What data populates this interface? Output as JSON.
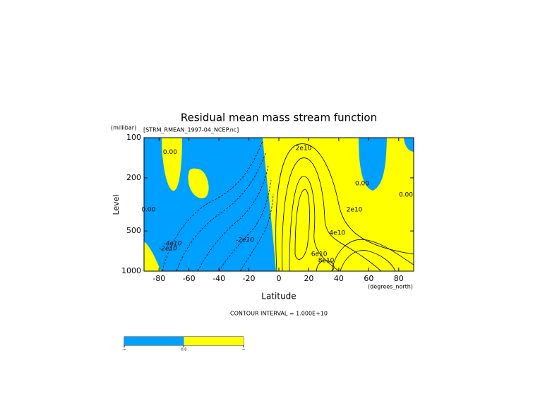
{
  "chart_data": {
    "type": "contour",
    "title": "Residual mean mass stream function",
    "subtitle": "[STRM_RMEAN_1997-04_NCEP.nc]",
    "y_unit": "(millibar)",
    "y_label": "Level",
    "x_label": "Latitude",
    "x_unit": "(degrees_north)",
    "note": "CONTOUR INTERVAL = 1.000E+10",
    "xlim": [
      -90,
      90
    ],
    "xticks": [
      -80,
      -60,
      -40,
      -20,
      0,
      20,
      40,
      60,
      80
    ],
    "ylim": [
      1000,
      100
    ],
    "yticks": [
      100,
      200,
      500,
      1000
    ],
    "y_log": true,
    "colors": [
      "#00a0ff",
      "#ffff00"
    ],
    "colorbar_labels": [
      "-∞",
      "0.0",
      "∞"
    ],
    "contour_labels": [
      {
        "label": "0.00",
        "value": 0,
        "lat": -72.6,
        "level": 128
      },
      {
        "label": "0.00",
        "value": 0,
        "lat": -87,
        "level": 346
      },
      {
        "label": "-2e10",
        "value": -20000000000,
        "lat": -74,
        "level": 676
      },
      {
        "label": "-4e10",
        "value": -40000000000,
        "lat": -71,
        "level": 620
      },
      {
        "label": "-2e10",
        "value": -20000000000,
        "lat": -22.6,
        "level": 585
      },
      {
        "label": "2e10",
        "value": 20000000000,
        "lat": 16.5,
        "level": 120
      },
      {
        "label": "0.00",
        "value": 0,
        "lat": 55.6,
        "level": 221
      },
      {
        "label": "0.00",
        "value": 0,
        "lat": 84.8,
        "level": 268
      },
      {
        "label": "2e10",
        "value": 20000000000,
        "lat": 50.4,
        "level": 346
      },
      {
        "label": "4e10",
        "value": 40000000000,
        "lat": 39,
        "level": 518
      },
      {
        "label": "6e10",
        "value": 60000000000,
        "lat": 26.9,
        "level": 747
      },
      {
        "label": "8e10",
        "value": 80000000000,
        "lat": 31.6,
        "level": 833
      }
    ]
  }
}
